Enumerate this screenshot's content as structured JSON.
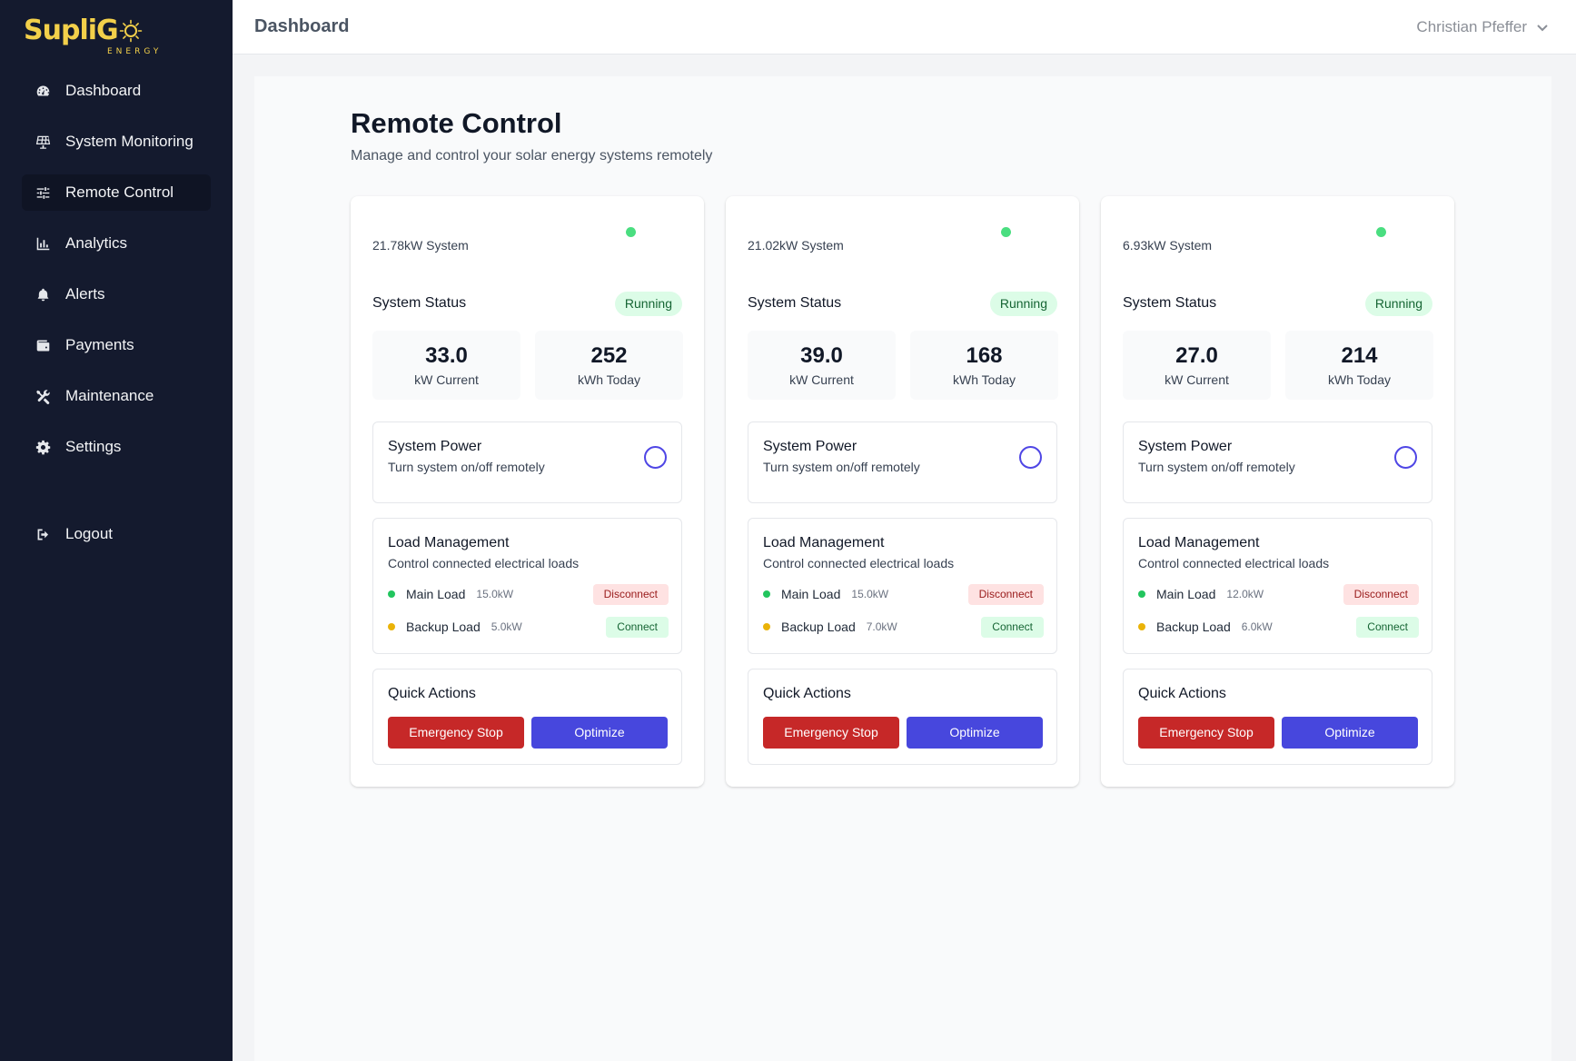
{
  "brand": {
    "name": "SupliG",
    "sub": "ENERGY",
    "accent": "#f3d04a"
  },
  "sidebar": {
    "items": [
      {
        "label": "Dashboard",
        "icon": "gauge-icon"
      },
      {
        "label": "System Monitoring",
        "icon": "solar-panel-icon"
      },
      {
        "label": "Remote Control",
        "icon": "sliders-icon",
        "active": true
      },
      {
        "label": "Analytics",
        "icon": "bar-chart-icon"
      },
      {
        "label": "Alerts",
        "icon": "bell-icon"
      },
      {
        "label": "Payments",
        "icon": "wallet-icon"
      },
      {
        "label": "Maintenance",
        "icon": "tools-icon"
      },
      {
        "label": "Settings",
        "icon": "gear-icon"
      }
    ],
    "logout": {
      "label": "Logout",
      "icon": "logout-icon"
    }
  },
  "header": {
    "title": "Dashboard",
    "user": "Christian Pfeffer"
  },
  "page": {
    "title": "Remote Control",
    "subtitle": "Manage and control your solar energy systems remotely"
  },
  "labels": {
    "system_status": "System Status",
    "kw_current": "kW Current",
    "kwh_today": "kWh Today",
    "system_power": "System Power",
    "system_power_sub": "Turn system on/off remotely",
    "load_management": "Load Management",
    "load_management_sub": "Control connected electrical loads",
    "main_load": "Main Load",
    "backup_load": "Backup Load",
    "disconnect": "Disconnect",
    "connect": "Connect",
    "quick_actions": "Quick Actions",
    "emergency_stop": "Emergency Stop",
    "optimize": "Optimize"
  },
  "systems": [
    {
      "name": "21.78kW System",
      "status": "Running",
      "kw_current": "33.0",
      "kwh_today": "252",
      "main_load_kw": "15.0kW",
      "backup_load_kw": "5.0kW"
    },
    {
      "name": "21.02kW System",
      "status": "Running",
      "kw_current": "39.0",
      "kwh_today": "168",
      "main_load_kw": "15.0kW",
      "backup_load_kw": "7.0kW"
    },
    {
      "name": "6.93kW System",
      "status": "Running",
      "kw_current": "27.0",
      "kwh_today": "214",
      "main_load_kw": "12.0kW",
      "backup_load_kw": "6.0kW"
    }
  ],
  "colors": {
    "online": "#4ade80",
    "main_load_dot": "#22c55e",
    "backup_load_dot": "#eab308",
    "emergency": "#c62828",
    "optimize": "#4747dd"
  }
}
